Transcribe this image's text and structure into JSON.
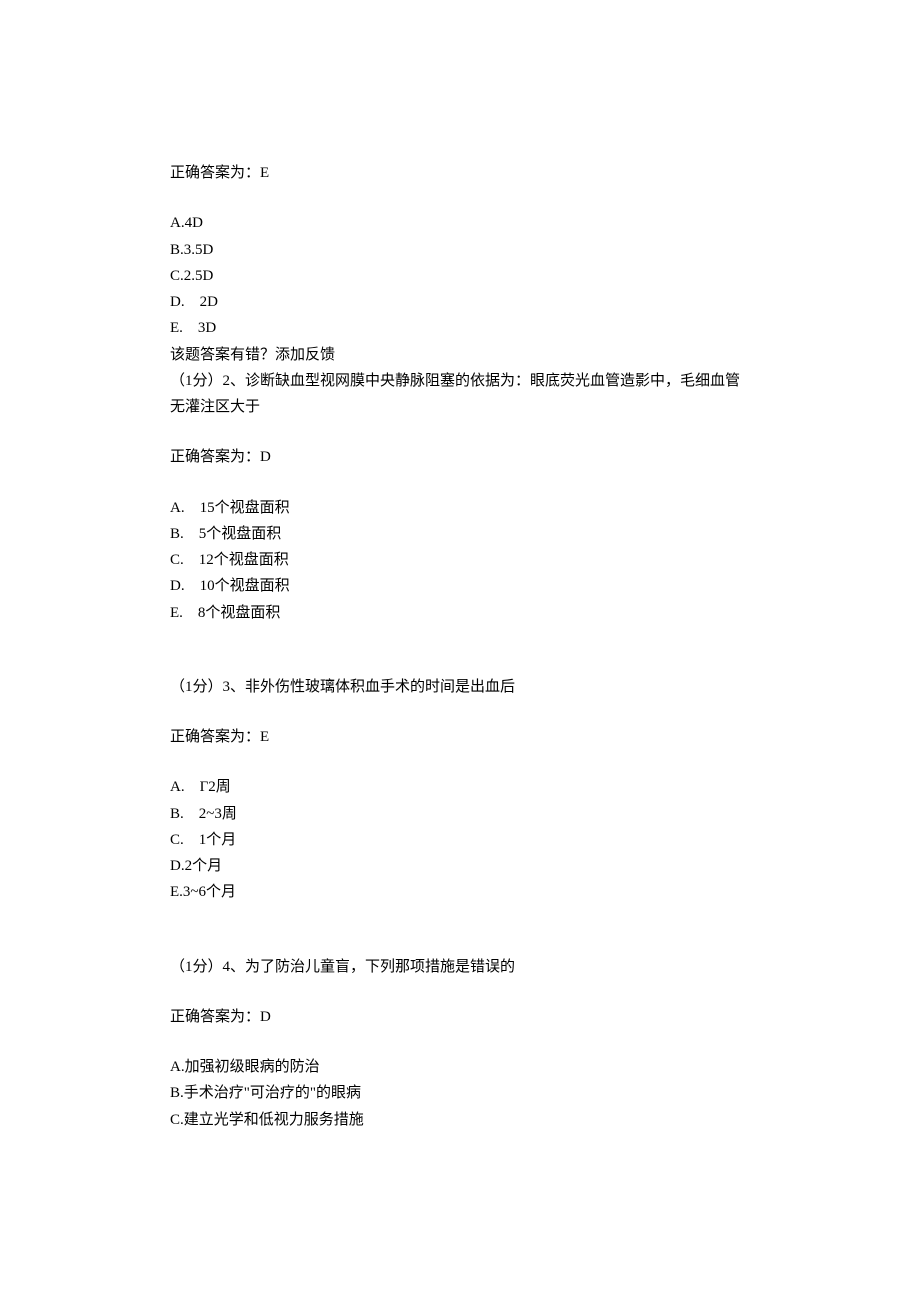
{
  "q1": {
    "answer_label": "正确答案为：E",
    "options": {
      "a": "A.4D",
      "b": "B.3.5D",
      "c": "C.2.5D",
      "d_letter": "D.",
      "d_text": "2D",
      "e_letter": "E.",
      "e_text": "3D"
    },
    "feedback": "该题答案有错？添加反馈"
  },
  "q2": {
    "stem": "（1分）2、诊断缺血型视网膜中央静脉阻塞的依据为：眼底荧光血管造影中，毛细血管无灌注区大于",
    "answer_label": "正确答案为：D",
    "options": {
      "a_letter": "A.",
      "a_text": "15个视盘面积",
      "b_letter": "B.",
      "b_text": "5个视盘面积",
      "c_letter": "C.",
      "c_text": "12个视盘面积",
      "d_letter": "D.",
      "d_text": "10个视盘面积",
      "e_letter": "E.",
      "e_text": "8个视盘面积"
    }
  },
  "q3": {
    "stem": "（1分）3、非外伤性玻璃体积血手术的时间是出血后",
    "answer_label": "正确答案为：E",
    "options": {
      "a_letter": "A.",
      "a_text": "Γ2周",
      "b_letter": "B.",
      "b_text": "2~3周",
      "c_letter": "C.",
      "c_text": "1个月",
      "d": "D.2个月",
      "e": "E.3~6个月"
    }
  },
  "q4": {
    "stem": "（1分）4、为了防治儿童盲，下列那项措施是错误的",
    "answer_label": "正确答案为：D",
    "options": {
      "a": "A.加强初级眼病的防治",
      "b": "B.手术治疗\"可治疗的\"的眼病",
      "c": "C.建立光学和低视力服务措施"
    }
  }
}
